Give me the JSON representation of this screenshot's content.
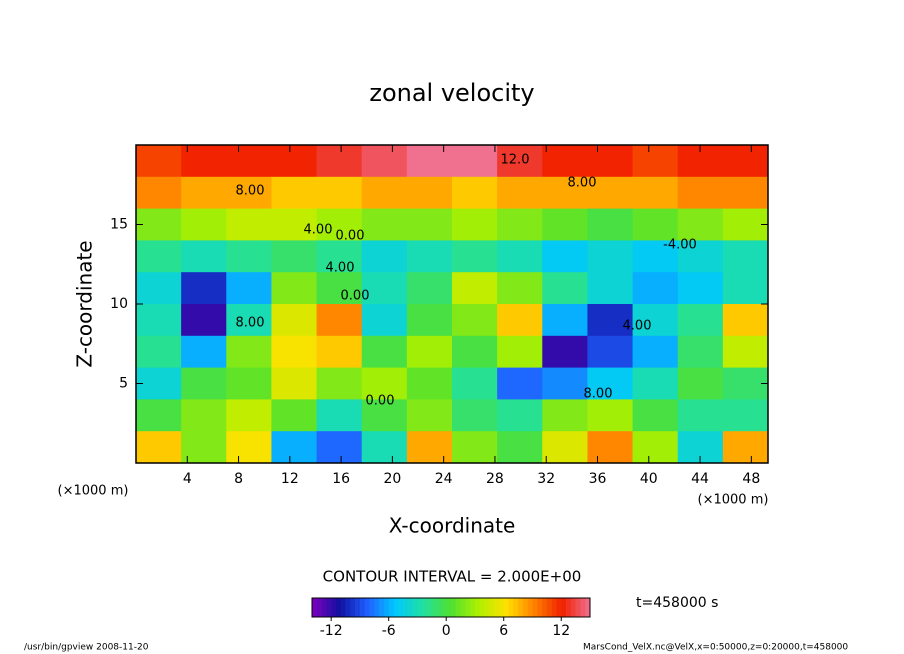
{
  "chart_data": {
    "type": "heatmap",
    "title": "zonal velocity",
    "x_label": "X-coordinate",
    "y_label": "Z-coordinate",
    "x_unit": "(×1000 m)",
    "y_unit": "(×1000 m)",
    "xlim": [
      0,
      49.3
    ],
    "ylim": [
      0,
      20
    ],
    "xticks": [
      4,
      8,
      12,
      16,
      20,
      24,
      28,
      32,
      36,
      40,
      44,
      48
    ],
    "yticks": [
      5,
      10,
      15
    ],
    "z": [
      [
        11,
        12,
        12,
        12,
        13,
        14,
        15,
        15,
        13,
        12,
        12,
        11,
        12,
        12
      ],
      [
        9,
        8,
        8,
        7,
        7,
        8,
        8,
        7,
        8,
        8,
        8,
        8,
        9,
        9
      ],
      [
        2,
        3,
        4,
        4,
        3,
        2,
        2,
        3,
        2,
        1,
        0,
        1,
        2,
        3
      ],
      [
        -2,
        -3,
        -2,
        -1,
        -2,
        -4,
        -3,
        -2,
        -3,
        -5,
        -4,
        -5,
        -4,
        -3
      ],
      [
        -4,
        -10,
        -6,
        2,
        0,
        -3,
        -1,
        4,
        2,
        -2,
        -4,
        -6,
        -5,
        -3
      ],
      [
        -3,
        -12,
        -3,
        5,
        9,
        -4,
        0,
        2,
        7,
        -6,
        -10,
        -4,
        -2,
        7
      ],
      [
        -2,
        -6,
        2,
        6,
        7,
        0,
        3,
        0,
        3,
        -12,
        -9,
        -6,
        -1,
        4
      ],
      [
        -4,
        0,
        1,
        5,
        2,
        3,
        1,
        -2,
        -8,
        -7,
        -5,
        -3,
        0,
        -1
      ],
      [
        0,
        2,
        4,
        1,
        -3,
        0,
        2,
        -1,
        -2,
        2,
        3,
        0,
        -2,
        -2
      ],
      [
        7,
        2,
        6,
        -6,
        -8,
        -3,
        8,
        2,
        0,
        5,
        9,
        3,
        -4,
        8
      ]
    ],
    "colormap": [
      "#8000c0",
      "#1010a0",
      "#2060ff",
      "#00c8ff",
      "#20e0a0",
      "#50e030",
      "#b0f000",
      "#ffe000",
      "#ff8000",
      "#f02000",
      "#f07090"
    ],
    "clim": [
      -14,
      15
    ],
    "colorbar_ticks": [
      -12,
      -6,
      0,
      6,
      12
    ],
    "contour_labels": [
      "12.0",
      "8.00",
      "8.00",
      "4.00",
      "0.00",
      "-4.00",
      "4.00",
      "0.00",
      "8.00",
      "0.00",
      "4.00",
      "8.00"
    ],
    "contour_interval": "CONTOUR INTERVAL = 2.000E+00",
    "time_label": "t=458000 s",
    "footer_left": "/usr/bin/gpview  2008-11-20",
    "footer_right": "MarsCond_VelX.nc@VelX,x=0:50000,z=0:20000,t=458000"
  }
}
